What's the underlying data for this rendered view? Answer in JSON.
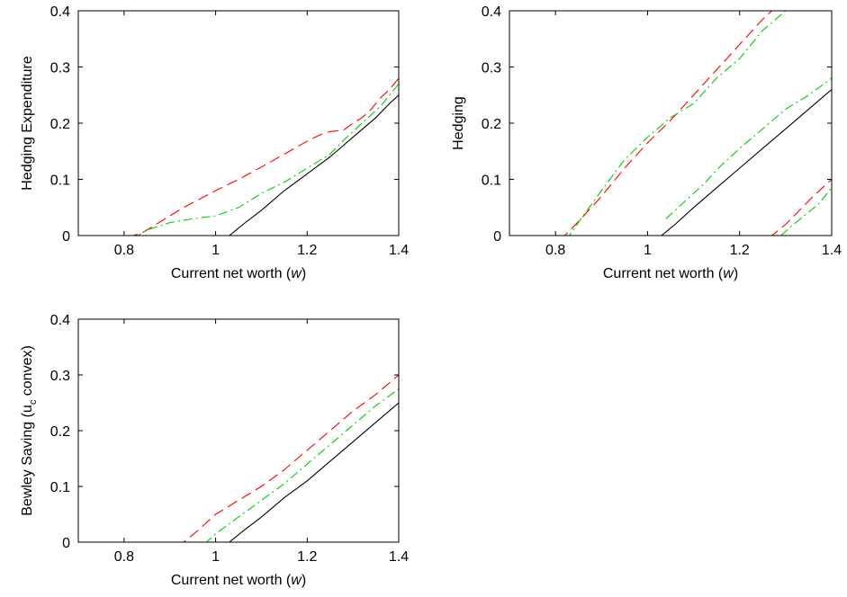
{
  "chart_data": [
    {
      "type": "line",
      "ylabel": "Hedging Expenditure",
      "xlabel": "Current net worth (",
      "xlabel_var": "w",
      "xlabel_end": ")",
      "xlim": [
        0.7,
        1.4
      ],
      "ylim": [
        0,
        0.4
      ],
      "xticks": [
        "0.8",
        "1",
        "1.2",
        "1.4"
      ],
      "yticks": [
        "0",
        "0.1",
        "0.2",
        "0.3",
        "0.4"
      ],
      "grid": false,
      "series": [
        {
          "color": "#ff0000",
          "style": "dashed",
          "x": [
            0.7,
            0.82,
            0.84,
            0.88,
            0.93,
            1.0,
            1.05,
            1.1,
            1.15,
            1.2,
            1.23,
            1.25,
            1.28,
            1.3,
            1.32,
            1.34,
            1.36,
            1.38,
            1.4
          ],
          "y": [
            0,
            0,
            0.005,
            0.025,
            0.05,
            0.08,
            0.1,
            0.122,
            0.145,
            0.168,
            0.18,
            0.185,
            0.188,
            0.2,
            0.21,
            0.225,
            0.245,
            0.26,
            0.28
          ]
        },
        {
          "color": "#00cc00",
          "style": "dashdot",
          "x": [
            0.7,
            0.83,
            0.85,
            0.9,
            0.95,
            1.0,
            1.05,
            1.1,
            1.15,
            1.2,
            1.25,
            1.28,
            1.3,
            1.32,
            1.34,
            1.36,
            1.38,
            1.4
          ],
          "y": [
            0,
            0,
            0.01,
            0.023,
            0.03,
            0.035,
            0.05,
            0.075,
            0.095,
            0.12,
            0.145,
            0.17,
            0.185,
            0.2,
            0.215,
            0.23,
            0.25,
            0.27
          ]
        },
        {
          "color": "#000000",
          "style": "solid",
          "x": [
            0.7,
            1.03,
            1.06,
            1.1,
            1.15,
            1.2,
            1.25,
            1.3,
            1.35,
            1.38,
            1.4
          ],
          "y": [
            0,
            0,
            0.02,
            0.045,
            0.08,
            0.11,
            0.14,
            0.175,
            0.21,
            0.235,
            0.25
          ]
        }
      ]
    },
    {
      "type": "line",
      "ylabel": "Hedging",
      "xlabel": "Current net worth (",
      "xlabel_var": "w",
      "xlabel_end": ")",
      "xlim": [
        0.7,
        1.4
      ],
      "ylim": [
        0,
        0.4
      ],
      "xticks": [
        "0.8",
        "1",
        "1.2",
        "1.4"
      ],
      "yticks": [
        "0",
        "0.1",
        "0.2",
        "0.3",
        "0.4"
      ],
      "grid": false,
      "series": [
        {
          "color": "#ff0000",
          "style": "dashed",
          "x": [
            0.7,
            0.82,
            0.85,
            0.9,
            0.95,
            1.0,
            1.05,
            1.1,
            1.15,
            1.2,
            1.25,
            1.27
          ],
          "y": [
            0,
            0,
            0.025,
            0.07,
            0.12,
            0.165,
            0.205,
            0.25,
            0.295,
            0.34,
            0.385,
            0.4
          ]
        },
        {
          "color": "#00cc00",
          "style": "dashdot",
          "x": [
            0.7,
            0.83,
            0.86,
            0.9,
            0.95,
            1.0,
            1.05,
            1.1,
            1.15,
            1.2,
            1.25,
            1.3
          ],
          "y": [
            0,
            0,
            0.035,
            0.08,
            0.135,
            0.175,
            0.21,
            0.235,
            0.28,
            0.315,
            0.365,
            0.4
          ]
        },
        {
          "color": "#000000",
          "style": "solid",
          "x": [
            0.7,
            1.03,
            1.06,
            1.1,
            1.15,
            1.2,
            1.25,
            1.3,
            1.35,
            1.4
          ],
          "y": [
            0,
            0,
            0.02,
            0.05,
            0.085,
            0.12,
            0.155,
            0.19,
            0.225,
            0.26
          ]
        },
        {
          "color": "#00cc00",
          "style": "dashdot",
          "x": [
            1.04,
            1.08,
            1.12,
            1.16,
            1.2,
            1.25,
            1.3,
            1.35,
            1.4
          ],
          "y": [
            0.03,
            0.06,
            0.09,
            0.125,
            0.155,
            0.19,
            0.225,
            0.25,
            0.28
          ]
        },
        {
          "color": "#ff0000",
          "style": "dashed",
          "x": [
            0.7,
            1.27,
            1.3,
            1.33,
            1.36,
            1.4
          ],
          "y": [
            0,
            0,
            0.02,
            0.045,
            0.07,
            0.1
          ]
        },
        {
          "color": "#00cc00",
          "style": "dashdot",
          "x": [
            1.29,
            1.31,
            1.34,
            1.37,
            1.4
          ],
          "y": [
            0,
            0.015,
            0.035,
            0.055,
            0.085
          ]
        }
      ]
    },
    {
      "type": "line",
      "ylabel": "Bewley Saving (u",
      "ylabel_sub": "c",
      "ylabel_end": " convex)",
      "xlabel": "Current net worth (",
      "xlabel_var": "w",
      "xlabel_end": ")",
      "xlim": [
        0.7,
        1.4
      ],
      "ylim": [
        0,
        0.4
      ],
      "xticks": [
        "0.8",
        "1",
        "1.2",
        "1.4"
      ],
      "yticks": [
        "0",
        "0.1",
        "0.2",
        "0.3",
        "0.4"
      ],
      "grid": false,
      "series": [
        {
          "color": "#ff0000",
          "style": "dashed",
          "x": [
            0.7,
            0.93,
            0.96,
            1.0,
            1.05,
            1.1,
            1.15,
            1.2,
            1.25,
            1.3,
            1.35,
            1.4
          ],
          "y": [
            0,
            0,
            0.02,
            0.05,
            0.075,
            0.1,
            0.13,
            0.165,
            0.2,
            0.235,
            0.265,
            0.3
          ]
        },
        {
          "color": "#00cc00",
          "style": "dashdot",
          "x": [
            0.7,
            0.98,
            1.0,
            1.05,
            1.1,
            1.15,
            1.2,
            1.25,
            1.3,
            1.35,
            1.4
          ],
          "y": [
            0,
            0,
            0.015,
            0.045,
            0.075,
            0.105,
            0.14,
            0.175,
            0.21,
            0.245,
            0.275
          ]
        },
        {
          "color": "#000000",
          "style": "solid",
          "x": [
            0.7,
            1.03,
            1.06,
            1.1,
            1.15,
            1.2,
            1.25,
            1.3,
            1.35,
            1.4
          ],
          "y": [
            0,
            0,
            0.02,
            0.045,
            0.08,
            0.11,
            0.145,
            0.18,
            0.215,
            0.25
          ]
        }
      ]
    }
  ]
}
